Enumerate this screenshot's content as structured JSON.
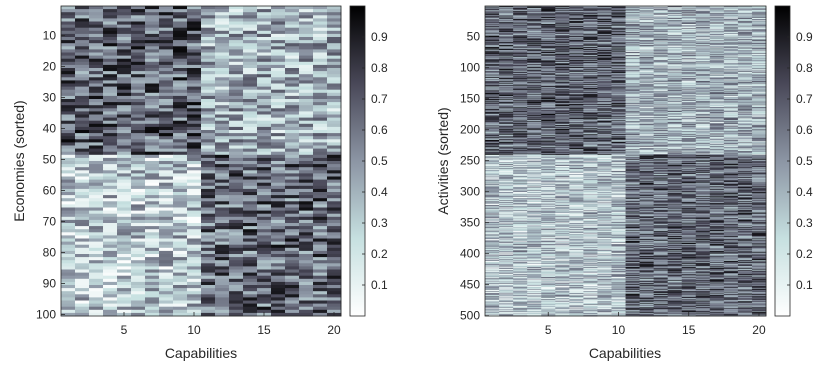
{
  "chart_data": [
    {
      "type": "heatmap",
      "xlabel": "Capabilities",
      "ylabel": "Economies (sorted)",
      "n_columns": 20,
      "n_rows": 100,
      "x_ticks": [
        5,
        10,
        15,
        20
      ],
      "y_ticks": [
        10,
        20,
        30,
        40,
        50,
        60,
        70,
        80,
        90,
        100
      ],
      "colorbar_ticks": [
        0.1,
        0.2,
        0.3,
        0.4,
        0.5,
        0.6,
        0.7,
        0.8,
        0.9
      ],
      "clim": [
        0,
        1
      ],
      "colormap": "bone (reversed)",
      "pattern": "rows 1-48 darker in capabilities 1-10 and lighter in 11-20; rows 49-100 lighter in capabilities 1-10 and darker in 11-20",
      "block_means": {
        "top_left": 0.66,
        "top_right": 0.4,
        "bottom_left": 0.32,
        "bottom_right": 0.64
      },
      "row_split": 48,
      "col_split": 10
    },
    {
      "type": "heatmap",
      "xlabel": "Capabilities",
      "ylabel": "Activities (sorted)",
      "n_columns": 20,
      "n_rows": 500,
      "x_ticks": [
        5,
        10,
        15,
        20
      ],
      "y_ticks": [
        50,
        100,
        150,
        200,
        250,
        300,
        350,
        400,
        450,
        500
      ],
      "colorbar_ticks": [
        0.1,
        0.2,
        0.3,
        0.4,
        0.5,
        0.6,
        0.7,
        0.8,
        0.9
      ],
      "clim": [
        0,
        1
      ],
      "colormap": "bone (reversed)",
      "pattern": "rows 1-240 darker in capabilities 1-10 and lighter in 11-20; rows 241-500 lighter in capabilities 1-10 and darker in 11-20",
      "block_means": {
        "top_left": 0.66,
        "top_right": 0.4,
        "bottom_left": 0.34,
        "bottom_right": 0.64
      },
      "row_split": 240,
      "col_split": 10
    }
  ],
  "colors": {
    "axis": "#262626",
    "background": "#ffffff"
  }
}
